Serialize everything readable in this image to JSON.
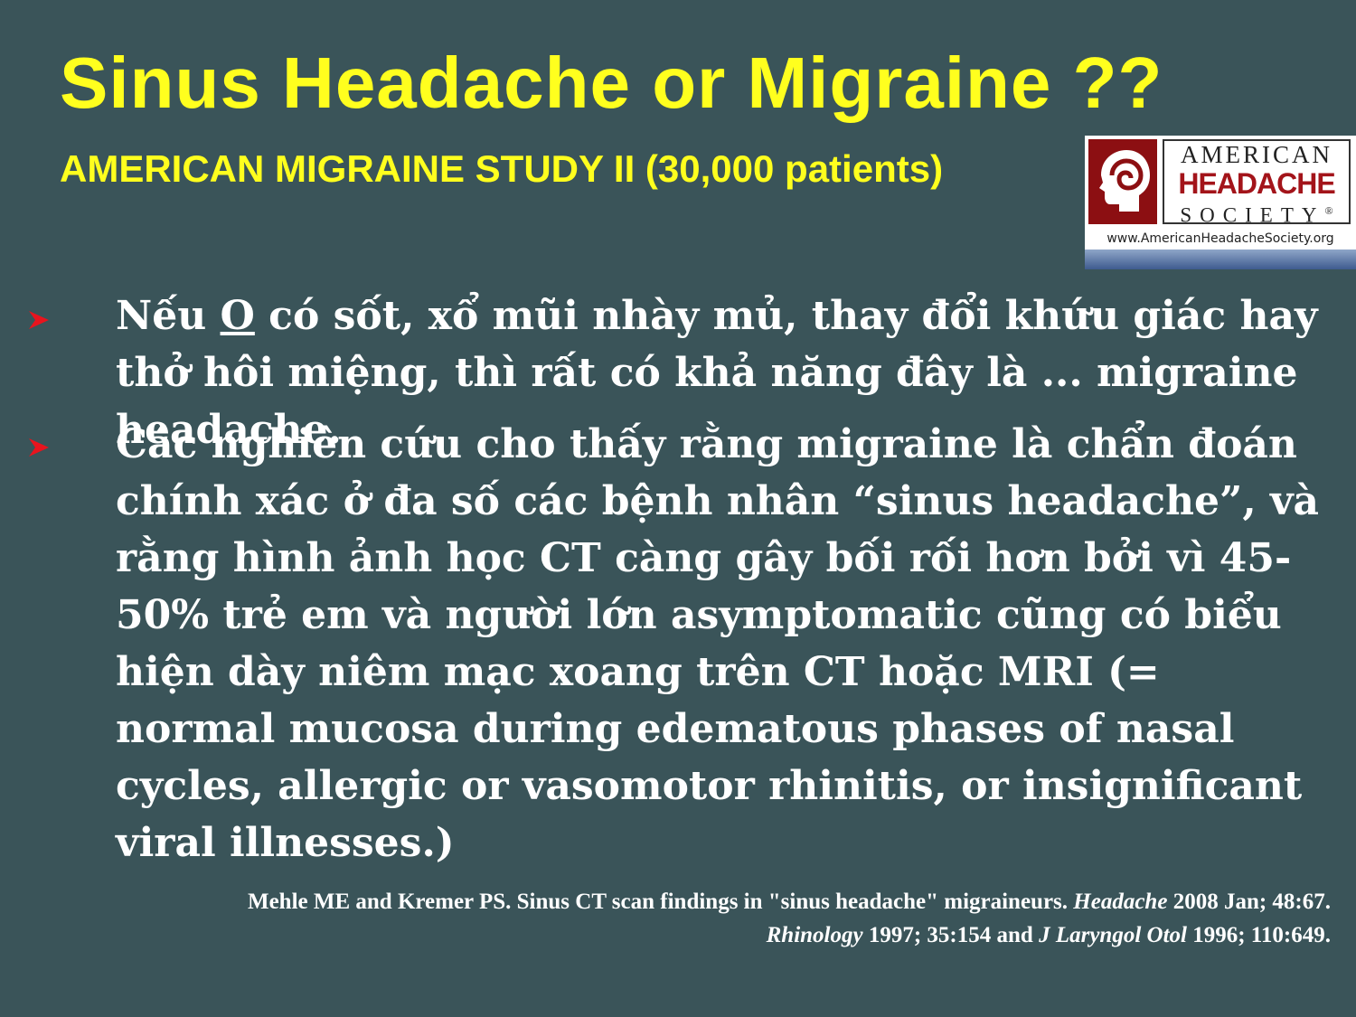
{
  "slide": {
    "title": "Sinus Headache or Migraine ??",
    "subtitle": "AMERICAN MIGRAINE STUDY II (30,000 patients)",
    "logo": {
      "line1": "AMERICAN",
      "line2": "HEADACHE",
      "line3": "SOCIETY",
      "registered": "®",
      "url": "www.AmericanHeadacheSociety.org",
      "icon": "head-silhouette-icon"
    },
    "bullets": [
      {
        "lead": "Nếu ",
        "underlined": "O",
        "text": " có sốt, xổ mũi nhày mủ, thay đổi khứu giác hay thở hôi miệng, thì rất có khả năng đây là ... migraine headache."
      },
      {
        "text": "Các nghiên cứu cho thấy rằng migraine là chẩn đoán chính xác ở đa số các bệnh nhân “sinus headache”, và rằng hình ảnh học CT càng gây bối rối hơn bởi vì 45-50% trẻ em và người lớn asymptomatic cũng có biểu hiện dày niêm mạc xoang trên CT hoặc MRI (= normal mucosa during edematous phases of nasal cycles, allergic or vasomotor rhinitis, or insignificant viral illnesses.)"
      }
    ],
    "references": {
      "line1_text": "Mehle ME and Kremer PS. Sinus CT scan findings in \"sinus headache\" migraineurs. ",
      "line1_journal": "Headache",
      "line1_tail": " 2008 Jan; 48:67.",
      "line2_journal1": "Rhinology",
      "line2_mid": " 1997; 35:154 and ",
      "line2_journal2": "J Laryngol Otol",
      "line2_tail": " 1996; 110:649."
    },
    "colors": {
      "background": "#3a5459",
      "title": "#ffff1e",
      "bullet_arrow": "#e8141e",
      "logo_red": "#8c0f12"
    }
  }
}
